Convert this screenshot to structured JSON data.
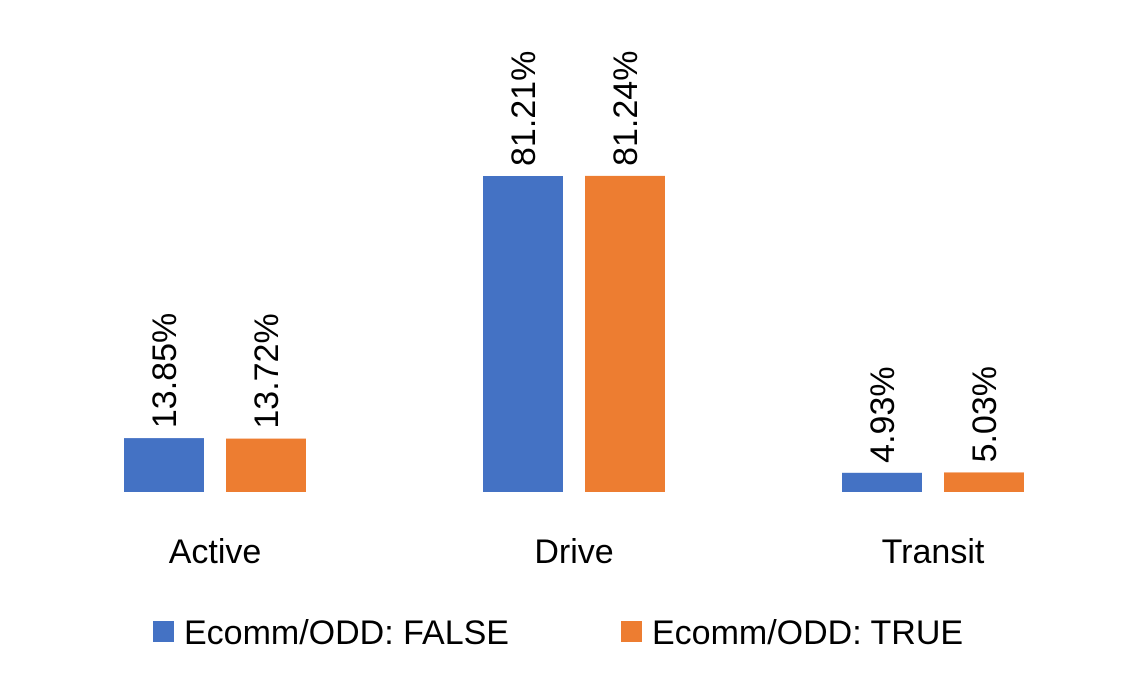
{
  "chart_data": {
    "type": "bar",
    "title": "",
    "xlabel": "",
    "ylabel": "",
    "categories": [
      "Active",
      "Drive",
      "Transit"
    ],
    "series": [
      {
        "name": "Ecomm/ODD: FALSE",
        "color": "#4472C4",
        "values": [
          13.85,
          81.21,
          4.93
        ],
        "labels": [
          "13.85%",
          "81.21%",
          "4.93%"
        ]
      },
      {
        "name": "Ecomm/ODD: TRUE",
        "color": "#ED7D31",
        "values": [
          13.72,
          81.24,
          5.03
        ],
        "labels": [
          "13.72%",
          "81.24%",
          "5.03%"
        ]
      }
    ],
    "ylim": [
      0,
      100
    ],
    "grid": false,
    "legend": "bottom"
  }
}
